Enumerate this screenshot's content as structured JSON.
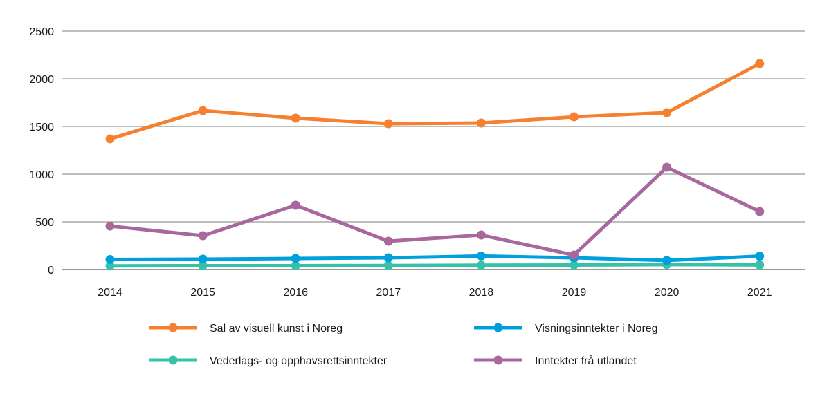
{
  "chart_data": {
    "type": "line",
    "title": "",
    "xlabel": "",
    "ylabel": "",
    "x": [
      "2014",
      "2015",
      "2016",
      "2017",
      "2018",
      "2019",
      "2020",
      "2021"
    ],
    "ylim": [
      0,
      2500
    ],
    "yticks": [
      0,
      500,
      1000,
      1500,
      2000,
      2500
    ],
    "grid": true,
    "legend_placement": "bottom",
    "series": [
      {
        "name": "Sal av visuell kunst i Noreg",
        "color": "#f58130",
        "values": [
          1370,
          1667,
          1587,
          1529,
          1536,
          1601,
          1645,
          2159
        ]
      },
      {
        "name": "Visningsinntekter i Noreg",
        "color": "#00a0dc",
        "values": [
          105,
          109,
          116,
          123,
          142,
          123,
          95,
          140
        ]
      },
      {
        "name": "Vederlags- og opphavsrettsinntekter",
        "color": "#36c2a9",
        "values": [
          38,
          40,
          40,
          42,
          45,
          47,
          52,
          48
        ]
      },
      {
        "name": "Inntekter frå utlandet",
        "color": "#a8689e",
        "values": [
          456,
          355,
          674,
          297,
          362,
          152,
          1072,
          609
        ]
      }
    ]
  }
}
